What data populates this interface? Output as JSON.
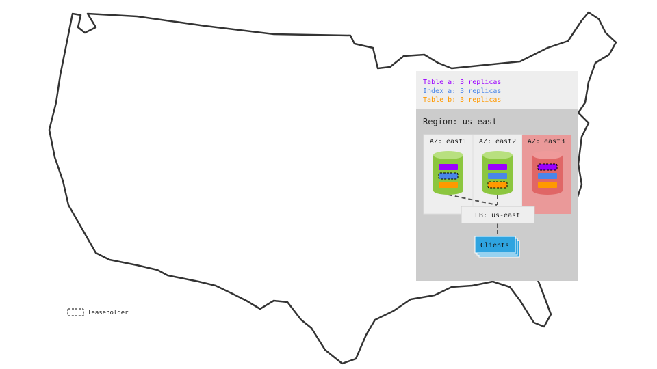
{
  "legend": {
    "table_a": "Table a: 3 replicas",
    "index_a": "Index a: 3 replicas",
    "table_b": "Table b: 3 replicas",
    "leaseholder": "leaseholder"
  },
  "region": {
    "label": "Region: us-east",
    "azs": [
      {
        "label": "AZ: east1",
        "status": "healthy",
        "leaseholder": "Index a"
      },
      {
        "label": "AZ: east2",
        "status": "healthy",
        "leaseholder": "Table b"
      },
      {
        "label": "AZ: east3",
        "status": "failed",
        "leaseholder": "Table a"
      }
    ],
    "lb": "LB: us-east",
    "clients": "Clients"
  },
  "colors": {
    "table_a": "#9b00ff",
    "index_a": "#4a86e8",
    "table_b": "#ff9900",
    "healthy_node": "#8cc63f",
    "failed_node": "#e06666",
    "failed_az_bg": "#ea9999",
    "clients": "#2fa4e0"
  }
}
